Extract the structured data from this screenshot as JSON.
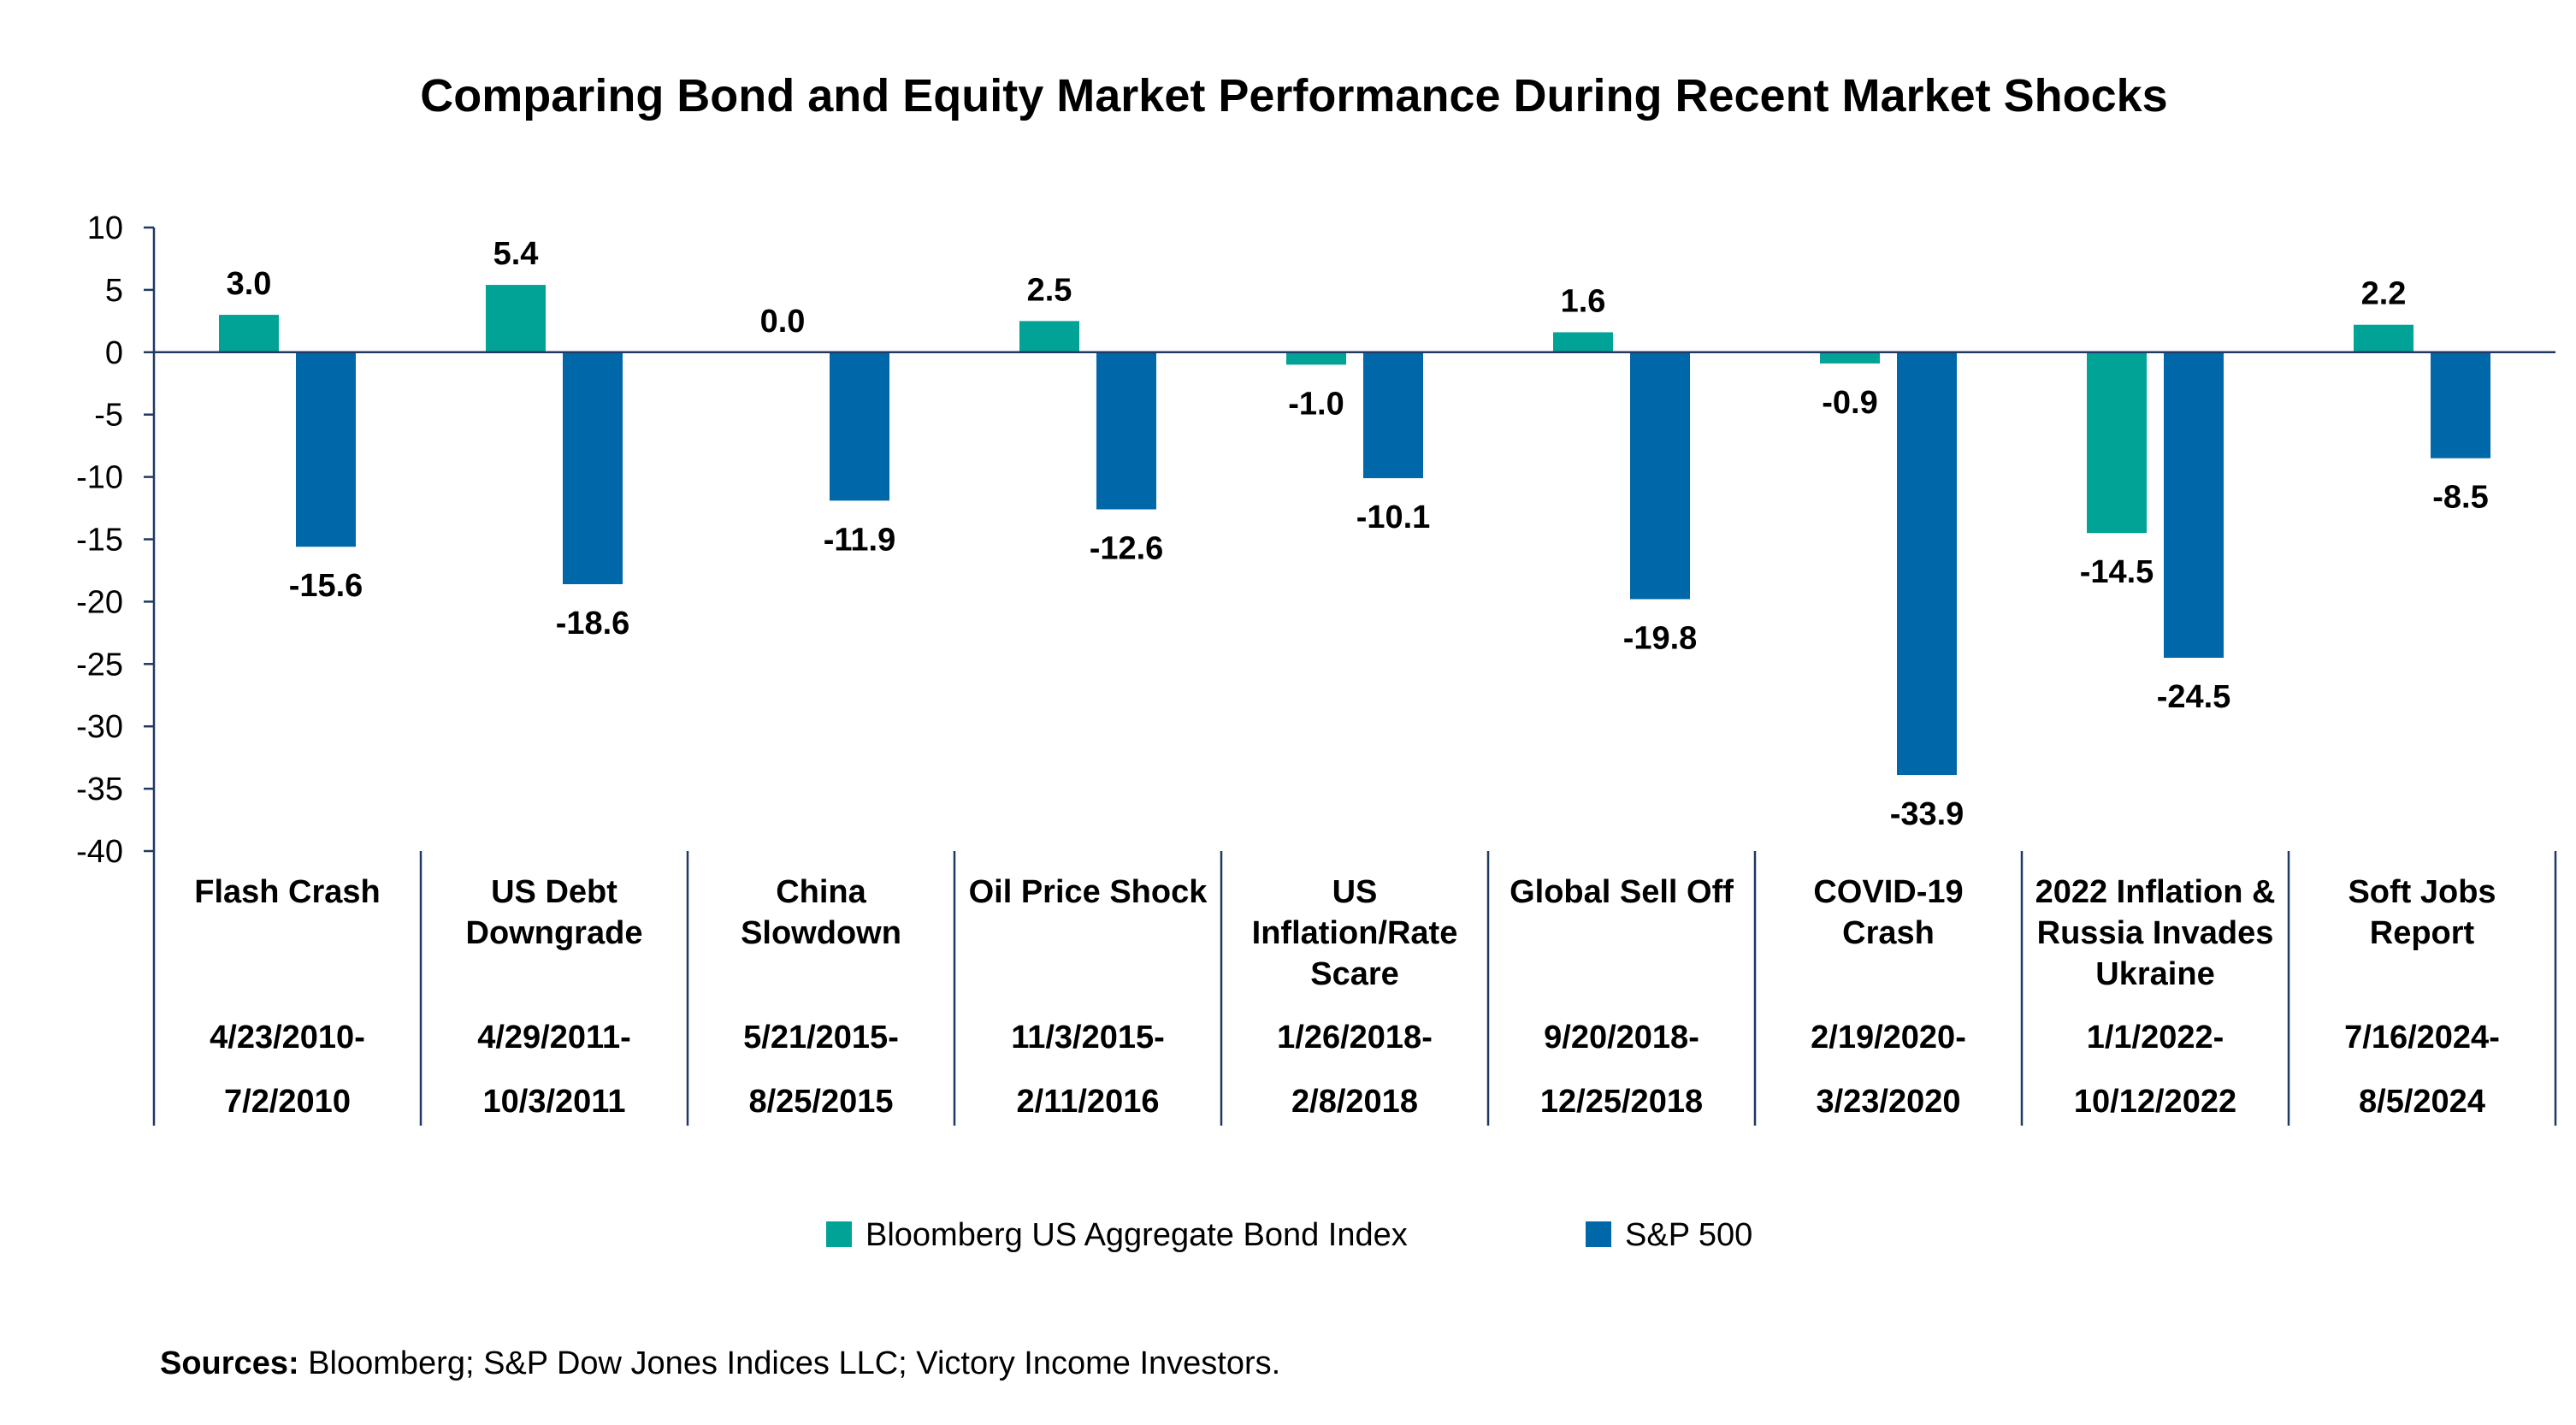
{
  "chart_data": {
    "type": "bar",
    "title": "Comparing Bond and Equity Market Performance During Recent Market Shocks",
    "xlabel": "",
    "ylabel": "",
    "ylim": [
      -40,
      10
    ],
    "yticks": [
      "10",
      "5",
      "0",
      "-5",
      "-10",
      "-15",
      "-20",
      "-25",
      "-30",
      "-35",
      "-40"
    ],
    "ytick_values": [
      10,
      5,
      0,
      -5,
      -10,
      -15,
      -20,
      -25,
      -30,
      -35,
      -40
    ],
    "grid": false,
    "legend_position": "bottom",
    "categories": [
      {
        "name_lines": [
          "Flash Crash"
        ],
        "dates": [
          "4/23/2010-",
          "7/2/2010"
        ]
      },
      {
        "name_lines": [
          "US Debt",
          "Downgrade"
        ],
        "dates": [
          "4/29/2011-",
          "10/3/2011"
        ]
      },
      {
        "name_lines": [
          "China",
          "Slowdown"
        ],
        "dates": [
          "5/21/2015-",
          "8/25/2015"
        ]
      },
      {
        "name_lines": [
          "Oil Price Shock"
        ],
        "dates": [
          "11/3/2015-",
          "2/11/2016"
        ]
      },
      {
        "name_lines": [
          "US",
          "Inflation/Rate",
          "Scare"
        ],
        "dates": [
          "1/26/2018-",
          "2/8/2018"
        ]
      },
      {
        "name_lines": [
          "Global Sell Off"
        ],
        "dates": [
          "9/20/2018-",
          "12/25/2018"
        ]
      },
      {
        "name_lines": [
          "COVID-19",
          "Crash"
        ],
        "dates": [
          "2/19/2020-",
          "3/23/2020"
        ]
      },
      {
        "name_lines": [
          "2022 Inflation &",
          "Russia Invades",
          "Ukraine"
        ],
        "dates": [
          "1/1/2022-",
          "10/12/2022"
        ]
      },
      {
        "name_lines": [
          "Soft Jobs",
          "Report"
        ],
        "dates": [
          "7/16/2024-",
          "8/5/2024"
        ]
      }
    ],
    "series": [
      {
        "name": "Bloomberg US Aggregate Bond Index",
        "color": "#00A396",
        "values": [
          3.0,
          5.4,
          0.0,
          2.5,
          -1.0,
          1.6,
          -0.9,
          -14.5,
          2.2
        ],
        "labels": [
          "3.0",
          "5.4",
          "0.0",
          "2.5",
          "-1.0",
          "1.6",
          "-0.9",
          "-14.5",
          "2.2"
        ]
      },
      {
        "name": "S&P 500",
        "color": "#0067A8",
        "values": [
          -15.6,
          -18.6,
          -11.9,
          -12.6,
          -10.1,
          -19.8,
          -33.9,
          -24.5,
          -8.5
        ],
        "labels": [
          "-15.6",
          "-18.6",
          "-11.9",
          "-12.6",
          "-10.1",
          "-19.8",
          "-33.9",
          "-24.5",
          "-8.5"
        ]
      }
    ],
    "axis_color": "#1F3864"
  },
  "source_note": {
    "label": "Sources:",
    "text": " Bloomberg; S&P Dow Jones Indices LLC; Victory Income Investors."
  }
}
